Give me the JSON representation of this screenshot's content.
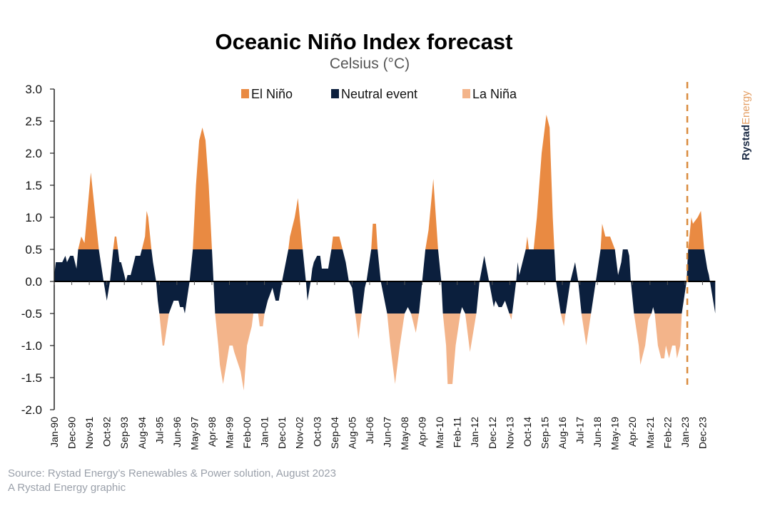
{
  "chart_data": {
    "type": "area",
    "title": "Oceanic Niño Index forecast",
    "subtitle": "Celsius (°C)",
    "xlabel": "",
    "ylabel": "",
    "ylim": [
      -2.0,
      3.0
    ],
    "yticks": [
      "3.0",
      "2.5",
      "2.0",
      "1.5",
      "1.0",
      "0.5",
      "0.0",
      "-0.5",
      "-1.0",
      "-1.5",
      "-2.0"
    ],
    "xlim": [
      "1990-01",
      "2024-08"
    ],
    "xtick_labels": [
      "Jan-90",
      "Dec-90",
      "Nov-91",
      "Oct-92",
      "Sep-93",
      "Aug-94",
      "Jul-95",
      "Jun-96",
      "May-97",
      "Apr-98",
      "Mar-99",
      "Feb-00",
      "Jan-01",
      "Dec-01",
      "Nov-02",
      "Oct-03",
      "Sep-04",
      "Aug-05",
      "Jul-06",
      "Jun-07",
      "May-08",
      "Apr-09",
      "Mar-10",
      "Feb-11",
      "Jan-12",
      "Dec-12",
      "Nov-13",
      "Oct-14",
      "Sep-15",
      "Aug-16",
      "Jul-17",
      "Jun-18",
      "May-19",
      "Apr-20",
      "Mar-21",
      "Feb-22",
      "Jan-23",
      "Dec-23"
    ],
    "thresholds": {
      "el_nino": 0.5,
      "la_nina": -0.5
    },
    "forecast_start": "2023-02",
    "grid": false,
    "legend_position": "top",
    "legend": [
      {
        "name": "El Niño",
        "color": "#E98A42"
      },
      {
        "name": "Neutral event",
        "color": "#0B1F3D"
      },
      {
        "name": "La Niña",
        "color": "#F3B48A"
      }
    ],
    "series": [
      {
        "points": [
          [
            "1990-01",
            0.1
          ],
          [
            "1990-02",
            0.3
          ],
          [
            "1990-06",
            0.3
          ],
          [
            "1990-08",
            0.4
          ],
          [
            "1990-09",
            0.3
          ],
          [
            "1990-11",
            0.4
          ],
          [
            "1991-01",
            0.4
          ],
          [
            "1991-02",
            0.3
          ],
          [
            "1991-03",
            0.2
          ],
          [
            "1991-04",
            0.5
          ],
          [
            "1991-06",
            0.7
          ],
          [
            "1991-08",
            0.6
          ],
          [
            "1991-12",
            1.7
          ],
          [
            "1992-05",
            0.5
          ],
          [
            "1992-08",
            0.0
          ],
          [
            "1992-10",
            -0.3
          ],
          [
            "1992-12",
            0.0
          ],
          [
            "1993-02",
            0.5
          ],
          [
            "1993-03",
            0.7
          ],
          [
            "1993-04",
            0.7
          ],
          [
            "1993-05",
            0.5
          ],
          [
            "1993-06",
            0.3
          ],
          [
            "1993-07",
            0.3
          ],
          [
            "1993-09",
            0.1
          ],
          [
            "1993-10",
            0.0
          ],
          [
            "1993-11",
            0.1
          ],
          [
            "1994-01",
            0.1
          ],
          [
            "1994-03",
            0.3
          ],
          [
            "1994-04",
            0.4
          ],
          [
            "1994-07",
            0.4
          ],
          [
            "1994-08",
            0.5
          ],
          [
            "1994-10",
            0.7
          ],
          [
            "1994-11",
            1.1
          ],
          [
            "1994-12",
            1.0
          ],
          [
            "1995-02",
            0.5
          ],
          [
            "1995-03",
            0.3
          ],
          [
            "1995-05",
            0.0
          ],
          [
            "1995-06",
            -0.3
          ],
          [
            "1995-07",
            -0.5
          ],
          [
            "1995-09",
            -1.0
          ],
          [
            "1995-10",
            -1.0
          ],
          [
            "1996-01",
            -0.5
          ],
          [
            "1996-04",
            -0.3
          ],
          [
            "1996-07",
            -0.3
          ],
          [
            "1996-08",
            -0.4
          ],
          [
            "1996-10",
            -0.4
          ],
          [
            "1996-11",
            -0.5
          ],
          [
            "1997-02",
            0.0
          ],
          [
            "1997-04",
            0.5
          ],
          [
            "1997-06",
            1.5
          ],
          [
            "1997-08",
            2.2
          ],
          [
            "1997-10",
            2.4
          ],
          [
            "1997-12",
            2.2
          ],
          [
            "1998-02",
            1.5
          ],
          [
            "1998-04",
            0.5
          ],
          [
            "1998-05",
            0.0
          ],
          [
            "1998-06",
            -0.5
          ],
          [
            "1998-08",
            -1.0
          ],
          [
            "1998-09",
            -1.3
          ],
          [
            "1998-11",
            -1.6
          ],
          [
            "1999-01",
            -1.3
          ],
          [
            "1999-03",
            -1.0
          ],
          [
            "1999-05",
            -1.0
          ],
          [
            "1999-06",
            -1.1
          ],
          [
            "1999-10",
            -1.4
          ],
          [
            "1999-12",
            -1.7
          ],
          [
            "2000-02",
            -1.0
          ],
          [
            "2000-04",
            -0.8
          ],
          [
            "2000-05",
            -0.7
          ],
          [
            "2000-06",
            -0.5
          ],
          [
            "2000-09",
            -0.5
          ],
          [
            "2000-10",
            -0.7
          ],
          [
            "2000-12",
            -0.7
          ],
          [
            "2001-01",
            -0.5
          ],
          [
            "2001-03",
            -0.3
          ],
          [
            "2001-06",
            -0.1
          ],
          [
            "2001-08",
            -0.3
          ],
          [
            "2001-10",
            -0.3
          ],
          [
            "2001-12",
            0.0
          ],
          [
            "2002-04",
            0.5
          ],
          [
            "2002-05",
            0.7
          ],
          [
            "2002-08",
            1.0
          ],
          [
            "2002-10",
            1.3
          ],
          [
            "2003-01",
            0.5
          ],
          [
            "2003-03",
            0.0
          ],
          [
            "2003-04",
            -0.3
          ],
          [
            "2003-06",
            0.0
          ],
          [
            "2003-07",
            0.2
          ],
          [
            "2003-08",
            0.3
          ],
          [
            "2003-10",
            0.4
          ],
          [
            "2003-12",
            0.4
          ],
          [
            "2004-01",
            0.2
          ],
          [
            "2004-05",
            0.2
          ],
          [
            "2004-07",
            0.5
          ],
          [
            "2004-08",
            0.7
          ],
          [
            "2004-12",
            0.7
          ],
          [
            "2005-01",
            0.6
          ],
          [
            "2005-02",
            0.5
          ],
          [
            "2005-04",
            0.3
          ],
          [
            "2005-06",
            0.0
          ],
          [
            "2005-08",
            -0.1
          ],
          [
            "2005-10",
            -0.5
          ],
          [
            "2005-12",
            -0.9
          ],
          [
            "2006-02",
            -0.5
          ],
          [
            "2006-04",
            -0.1
          ],
          [
            "2006-05",
            0.0
          ],
          [
            "2006-08",
            0.5
          ],
          [
            "2006-09",
            0.9
          ],
          [
            "2006-11",
            0.9
          ],
          [
            "2006-12",
            0.5
          ],
          [
            "2007-02",
            0.0
          ],
          [
            "2007-06",
            -0.5
          ],
          [
            "2007-08",
            -1.0
          ],
          [
            "2007-11",
            -1.6
          ],
          [
            "2008-02",
            -1.0
          ],
          [
            "2008-05",
            -0.5
          ],
          [
            "2008-07",
            -0.4
          ],
          [
            "2008-09",
            -0.5
          ],
          [
            "2008-12",
            -0.8
          ],
          [
            "2009-02",
            -0.5
          ],
          [
            "2009-04",
            0.0
          ],
          [
            "2009-06",
            0.5
          ],
          [
            "2009-08",
            0.8
          ],
          [
            "2009-11",
            1.6
          ],
          [
            "2010-02",
            0.5
          ],
          [
            "2010-04",
            0.0
          ],
          [
            "2010-05",
            -0.5
          ],
          [
            "2010-07",
            -1.0
          ],
          [
            "2010-08",
            -1.6
          ],
          [
            "2010-11",
            -1.6
          ],
          [
            "2011-01",
            -1.0
          ],
          [
            "2011-04",
            -0.5
          ],
          [
            "2011-05",
            -0.4
          ],
          [
            "2011-07",
            -0.5
          ],
          [
            "2011-10",
            -1.1
          ],
          [
            "2012-02",
            -0.5
          ],
          [
            "2012-04",
            0.0
          ],
          [
            "2012-07",
            0.4
          ],
          [
            "2012-10",
            0.0
          ],
          [
            "2013-01",
            -0.4
          ],
          [
            "2013-02",
            -0.3
          ],
          [
            "2013-04",
            -0.4
          ],
          [
            "2013-06",
            -0.4
          ],
          [
            "2013-08",
            -0.3
          ],
          [
            "2013-12",
            -0.6
          ],
          [
            "2014-03",
            0.0
          ],
          [
            "2014-04",
            0.3
          ],
          [
            "2014-05",
            0.1
          ],
          [
            "2014-07",
            0.3
          ],
          [
            "2014-09",
            0.5
          ],
          [
            "2014-10",
            0.7
          ],
          [
            "2014-11",
            0.5
          ],
          [
            "2015-02",
            0.5
          ],
          [
            "2015-04",
            1.0
          ],
          [
            "2015-07",
            2.0
          ],
          [
            "2015-10",
            2.6
          ],
          [
            "2015-12",
            2.4
          ],
          [
            "2016-02",
            1.0
          ],
          [
            "2016-03",
            0.5
          ],
          [
            "2016-04",
            0.0
          ],
          [
            "2016-07",
            -0.5
          ],
          [
            "2016-09",
            -0.7
          ],
          [
            "2016-10",
            -0.5
          ],
          [
            "2017-01",
            0.0
          ],
          [
            "2017-04",
            0.3
          ],
          [
            "2017-06",
            0.0
          ],
          [
            "2017-08",
            -0.5
          ],
          [
            "2017-11",
            -1.0
          ],
          [
            "2018-02",
            -0.5
          ],
          [
            "2018-05",
            0.0
          ],
          [
            "2018-08",
            0.5
          ],
          [
            "2018-09",
            0.9
          ],
          [
            "2018-11",
            0.7
          ],
          [
            "2019-02",
            0.7
          ],
          [
            "2019-05",
            0.5
          ],
          [
            "2019-06",
            0.3
          ],
          [
            "2019-07",
            0.1
          ],
          [
            "2019-09",
            0.3
          ],
          [
            "2019-10",
            0.5
          ],
          [
            "2020-01",
            0.5
          ],
          [
            "2020-02",
            0.4
          ],
          [
            "2020-03",
            0.0
          ],
          [
            "2020-05",
            -0.5
          ],
          [
            "2020-08",
            -1.0
          ],
          [
            "2020-09",
            -1.3
          ],
          [
            "2020-12",
            -1.0
          ],
          [
            "2021-02",
            -0.6
          ],
          [
            "2021-04",
            -0.5
          ],
          [
            "2021-05",
            -0.4
          ],
          [
            "2021-06",
            -0.5
          ],
          [
            "2021-08",
            -1.0
          ],
          [
            "2021-10",
            -1.2
          ],
          [
            "2021-12",
            -1.2
          ],
          [
            "2022-01",
            -1.0
          ],
          [
            "2022-03",
            -1.2
          ],
          [
            "2022-05",
            -1.0
          ],
          [
            "2022-07",
            -1.0
          ],
          [
            "2022-08",
            -1.2
          ],
          [
            "2022-10",
            -1.0
          ],
          [
            "2022-11",
            -0.5
          ],
          [
            "2023-02",
            0.0
          ],
          [
            "2023-03",
            0.5
          ],
          [
            "2023-05",
            1.0
          ],
          [
            "2023-06",
            0.9
          ],
          [
            "2023-09",
            1.0
          ],
          [
            "2023-11",
            1.1
          ],
          [
            "2024-01",
            0.5
          ],
          [
            "2024-03",
            0.2
          ],
          [
            "2024-04",
            0.1
          ],
          [
            "2024-08",
            -0.5
          ]
        ]
      }
    ]
  },
  "logo": {
    "part1": "Rystad",
    "part2": "Energy"
  },
  "footer": {
    "source": "Source: Rystad Energy’s Renewables & Power solution, August 2023",
    "credit": "A Rystad Energy graphic"
  }
}
